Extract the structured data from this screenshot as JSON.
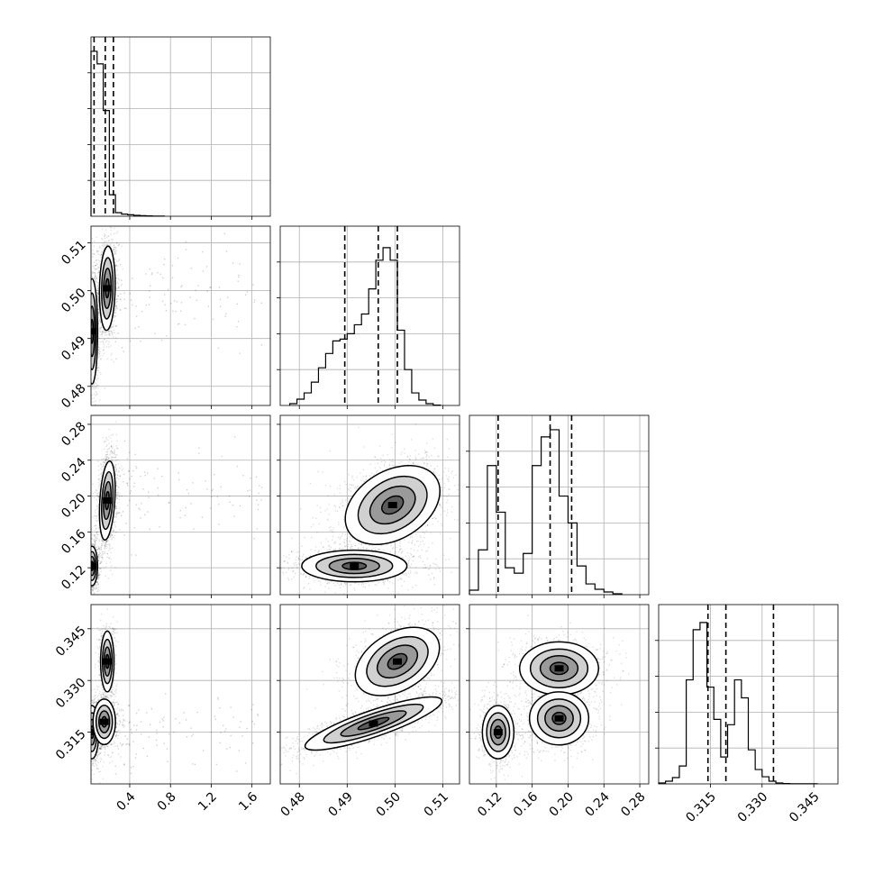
{
  "chart_data": {
    "type": "corner",
    "title": "",
    "grid": true,
    "variables": [
      {
        "label": "",
        "range": [
          0.02,
          1.78
        ],
        "ticks": [
          0.4,
          0.8,
          1.2,
          1.6
        ],
        "tick_labels": [
          "0.4",
          "0.8",
          "1.2",
          "1.6"
        ],
        "quantiles": [
          0.05,
          0.16,
          0.24
        ],
        "hist": {
          "edges": [
            0.02,
            0.08,
            0.14,
            0.2,
            0.26,
            0.32,
            0.38,
            0.44,
            0.5,
            0.56,
            0.62,
            0.68,
            0.74
          ],
          "counts": [
            0.92,
            0.85,
            0.59,
            0.12,
            0.02,
            0.012,
            0.008,
            0.005,
            0.003,
            0.002,
            0.001,
            0.001
          ]
        }
      },
      {
        "label": "",
        "range": [
          0.476,
          0.5135
        ],
        "ticks": [
          0.48,
          0.49,
          0.5,
          0.51
        ],
        "tick_labels": [
          "0.48",
          "0.49",
          "0.50",
          "0.51"
        ],
        "quantiles": [
          0.4895,
          0.4965,
          0.5005
        ],
        "hist": {
          "edges": [
            0.478,
            0.4795,
            0.481,
            0.4825,
            0.484,
            0.4855,
            0.487,
            0.4885,
            0.49,
            0.4915,
            0.493,
            0.4945,
            0.496,
            0.4975,
            0.499,
            0.5005,
            0.502,
            0.5035,
            0.505,
            0.5065,
            0.508,
            0.5095
          ],
          "counts": [
            0.01,
            0.035,
            0.07,
            0.13,
            0.21,
            0.29,
            0.36,
            0.37,
            0.4,
            0.45,
            0.51,
            0.65,
            0.81,
            0.88,
            0.81,
            0.42,
            0.2,
            0.07,
            0.03,
            0.01,
            0.002
          ]
        }
      },
      {
        "label": "",
        "range": [
          0.09,
          0.29
        ],
        "ticks": [
          0.12,
          0.16,
          0.2,
          0.24,
          0.28
        ],
        "tick_labels": [
          "0.12",
          "0.16",
          "0.20",
          "0.24",
          "0.28"
        ],
        "quantiles": [
          0.122,
          0.18,
          0.204
        ],
        "hist": {
          "edges": [
            0.09,
            0.1,
            0.11,
            0.12,
            0.13,
            0.14,
            0.15,
            0.16,
            0.17,
            0.18,
            0.19,
            0.2,
            0.21,
            0.22,
            0.23,
            0.24,
            0.25,
            0.26
          ],
          "counts": [
            0.025,
            0.25,
            0.72,
            0.46,
            0.15,
            0.12,
            0.23,
            0.72,
            0.88,
            0.92,
            0.55,
            0.4,
            0.16,
            0.06,
            0.03,
            0.015,
            0.005
          ]
        }
      },
      {
        "label": "",
        "range": [
          0.3,
          0.352
        ],
        "ticks": [
          0.315,
          0.33,
          0.345
        ],
        "tick_labels": [
          "0.315",
          "0.330",
          "0.345"
        ],
        "quantiles": [
          0.3143,
          0.3195,
          0.3333
        ],
        "hist": {
          "edges": [
            0.3,
            0.302,
            0.304,
            0.306,
            0.308,
            0.31,
            0.312,
            0.314,
            0.316,
            0.318,
            0.32,
            0.322,
            0.324,
            0.326,
            0.328,
            0.33,
            0.332,
            0.334,
            0.336,
            0.338,
            0.34,
            0.342,
            0.344,
            0.346
          ],
          "counts": [
            0.005,
            0.015,
            0.035,
            0.1,
            0.58,
            0.86,
            0.9,
            0.54,
            0.36,
            0.15,
            0.33,
            0.58,
            0.48,
            0.19,
            0.08,
            0.04,
            0.015,
            0.005,
            0.002,
            0.001,
            0.001,
            0.001,
            0.001
          ]
        }
      }
    ],
    "pairs": [
      {
        "x": 0,
        "y": 1,
        "clusters": [
          {
            "cx": 0.18,
            "cy": 0.5005,
            "sx": 0.035,
            "sy": 0.004,
            "rho": 0.1,
            "w": 0.5
          },
          {
            "cx": 0.03,
            "cy": 0.4915,
            "sx": 0.025,
            "sy": 0.005,
            "rho": 0.0,
            "w": 0.5
          }
        ],
        "tail": {
          "x0": 0.26,
          "x1": 1.7,
          "y": 0.499,
          "sy": 0.006,
          "n": 120
        }
      },
      {
        "x": 0,
        "y": 2,
        "clusters": [
          {
            "cx": 0.18,
            "cy": 0.195,
            "sx": 0.035,
            "sy": 0.02,
            "rho": 0.3,
            "w": 0.55
          },
          {
            "cx": 0.03,
            "cy": 0.122,
            "sx": 0.025,
            "sy": 0.01,
            "rho": 0.0,
            "w": 0.45
          }
        ],
        "tail": {
          "x0": 0.26,
          "x1": 1.7,
          "y": 0.21,
          "sy": 0.025,
          "n": 120
        }
      },
      {
        "x": 0,
        "y": 3,
        "clusters": [
          {
            "cx": 0.18,
            "cy": 0.3355,
            "sx": 0.03,
            "sy": 0.004,
            "rho": 0.0,
            "w": 0.3
          },
          {
            "cx": 0.03,
            "cy": 0.315,
            "sx": 0.03,
            "sy": 0.0035,
            "rho": 0.0,
            "w": 0.4
          },
          {
            "cx": 0.15,
            "cy": 0.318,
            "sx": 0.05,
            "sy": 0.003,
            "rho": 0.0,
            "w": 0.3
          }
        ],
        "tail": {
          "x0": 0.26,
          "x1": 1.7,
          "y": 0.315,
          "sy": 0.005,
          "n": 120
        }
      },
      {
        "x": 1,
        "y": 2,
        "clusters": [
          {
            "cx": 0.4995,
            "cy": 0.19,
            "sx": 0.0045,
            "sy": 0.02,
            "rho": 0.35,
            "w": 0.55
          },
          {
            "cx": 0.4915,
            "cy": 0.122,
            "sx": 0.005,
            "sy": 0.008,
            "rho": 0.0,
            "w": 0.45
          }
        ],
        "tail": null
      },
      {
        "x": 1,
        "y": 3,
        "clusters": [
          {
            "cx": 0.5005,
            "cy": 0.3355,
            "sx": 0.004,
            "sy": 0.0045,
            "rho": 0.4,
            "w": 0.35
          },
          {
            "cx": 0.4955,
            "cy": 0.3175,
            "sx": 0.0065,
            "sy": 0.0035,
            "rho": 0.85,
            "w": 0.65
          }
        ],
        "tail": null
      },
      {
        "x": 2,
        "y": 3,
        "clusters": [
          {
            "cx": 0.122,
            "cy": 0.315,
            "sx": 0.008,
            "sy": 0.0035,
            "rho": 0.0,
            "w": 0.3
          },
          {
            "cx": 0.19,
            "cy": 0.3335,
            "sx": 0.02,
            "sy": 0.0035,
            "rho": 0.0,
            "w": 0.35
          },
          {
            "cx": 0.19,
            "cy": 0.319,
            "sx": 0.015,
            "sy": 0.0035,
            "rho": 0.0,
            "w": 0.35
          }
        ],
        "tail": null
      }
    ]
  }
}
